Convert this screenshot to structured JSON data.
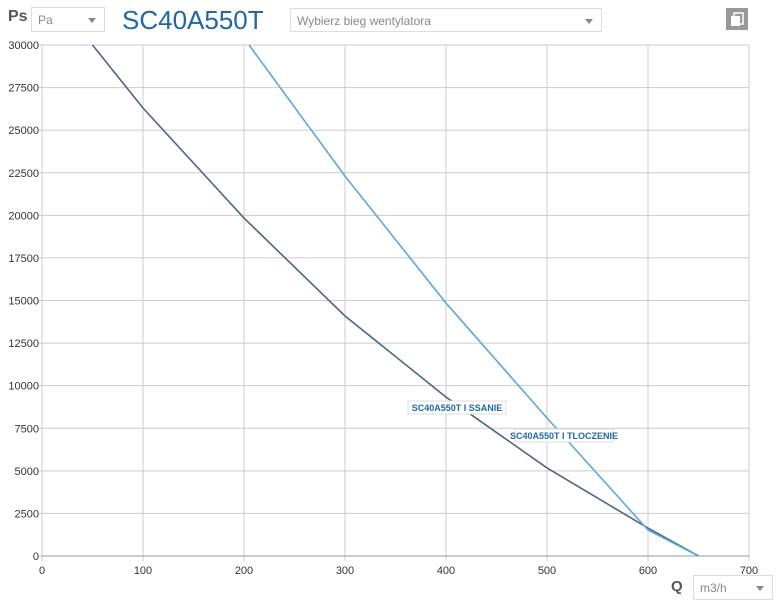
{
  "header": {
    "ps_label": "Ps",
    "pressure_unit": "Pa",
    "title": "SC40A550T",
    "fan_speed_placeholder": "Wybierz bieg wentylatora"
  },
  "footer": {
    "q_label": "Q",
    "flow_unit": "m3/h"
  },
  "colors": {
    "title": "#2167a8",
    "series_ssanie": "#4e6686",
    "series_tloczenie": "#5aa9dd"
  },
  "chart_data": {
    "type": "line",
    "xlim": [
      0,
      700
    ],
    "ylim": [
      0,
      30000
    ],
    "grid": true,
    "x_ticks": [
      "0",
      "100",
      "200",
      "300",
      "400",
      "500",
      "600",
      "700"
    ],
    "y_ticks": [
      "0",
      "2500",
      "5000",
      "7500",
      "10000",
      "12500",
      "15000",
      "17500",
      "20000",
      "22500",
      "25000",
      "27500",
      "30000"
    ],
    "series": [
      {
        "name": "SC40A550T I SSANIE",
        "x": [
          50,
          100,
          200,
          300,
          400,
          500,
          600,
          650
        ],
        "y": [
          30000,
          26300,
          19840,
          14090,
          9330,
          5170,
          1640,
          0
        ]
      },
      {
        "name": "SC40A550T I TLOCZENIE",
        "x": [
          205,
          300,
          400,
          500,
          600,
          650
        ],
        "y": [
          30000,
          22300,
          14850,
          8100,
          1530,
          0
        ]
      }
    ]
  }
}
